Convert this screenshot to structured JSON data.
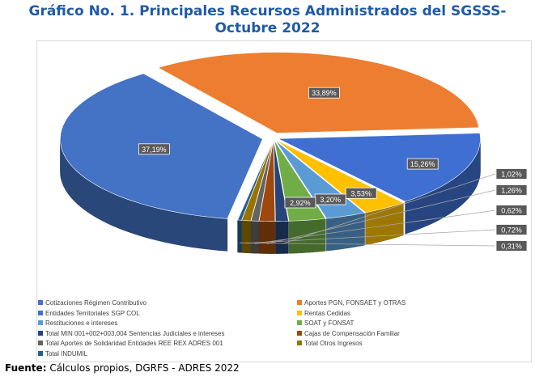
{
  "title_line1": "Gráfico No. 1. Principales Recursos Administrados del SGSSS-",
  "title_line2": "Octubre 2022",
  "source_label": "Fuente:",
  "source_text": " Cálculos propios, DGRFS - ADRES 2022",
  "chart_data": {
    "type": "pie",
    "style": "3d-exploded",
    "legend_position": "bottom",
    "slices": [
      {
        "name": "Cotizaciones Régimen Contributivo",
        "value": 37.19,
        "label": "37,19%",
        "color": "#4472c4"
      },
      {
        "name": "Aportes PGN, FONSAET y OTRAS",
        "value": 33.89,
        "label": "33,89%",
        "color": "#ed7d31"
      },
      {
        "name": "Entidades Territoriales SGP COL",
        "value": 15.26,
        "label": "15,26%",
        "color": "#3f6fd0"
      },
      {
        "name": "Rentas Cedidas",
        "value": 3.53,
        "label": "3,53%",
        "color": "#ffc000"
      },
      {
        "name": "Restituciones  e intereses",
        "value": 3.2,
        "label": "3,20%",
        "color": "#5b9bd5"
      },
      {
        "name": "SOAT y FONSAT",
        "value": 2.92,
        "label": "2,92%",
        "color": "#70ad47"
      },
      {
        "name": "Total MIN 001+002+003,004 Sentencias Judiciales e intereses",
        "value": 1.02,
        "label": "1,02%",
        "color": "#264478"
      },
      {
        "name": "Cajas de Compensación Familiar",
        "value": 1.26,
        "label": "1,26%",
        "color": "#9e480e"
      },
      {
        "name": "Total Aportes de Solidaridad Entidades REE REX ADRES 001",
        "value": 0.62,
        "label": "0,62%",
        "color": "#636363"
      },
      {
        "name": "Total Otros Ingresos",
        "value": 0.72,
        "label": "0,72%",
        "color": "#997300"
      },
      {
        "name": "Total INDUMIL",
        "value": 0.31,
        "label": "0,31%",
        "color": "#255e91"
      }
    ]
  }
}
